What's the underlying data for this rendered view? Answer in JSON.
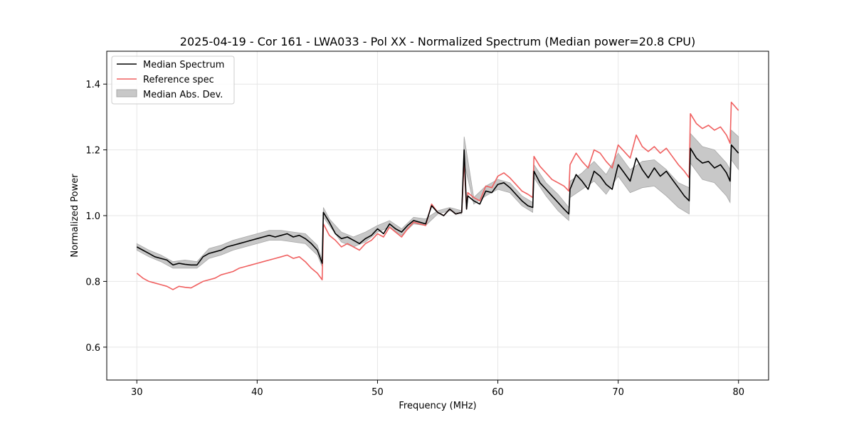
{
  "chart_data": {
    "type": "line",
    "title": "2025-04-19 - Cor 161 - LWA033 - Pol XX - Normalized Spectrum (Median power=20.8 CPU)",
    "xlabel": "Frequency (MHz)",
    "ylabel": "Normalized Power",
    "xlim": [
      27.5,
      82.5
    ],
    "ylim": [
      0.5,
      1.5
    ],
    "xticks": [
      30,
      40,
      50,
      60,
      70,
      80
    ],
    "yticks": [
      0.6,
      0.8,
      1.0,
      1.2,
      1.4
    ],
    "grid": true,
    "legend_position": "top-left",
    "series": [
      {
        "name": "Median Spectrum",
        "color": "#000000",
        "x": [
          30.0,
          30.5,
          31.0,
          31.5,
          32.0,
          32.5,
          33.0,
          33.5,
          34.0,
          34.5,
          35.0,
          35.5,
          36.0,
          36.5,
          37.0,
          37.5,
          38.0,
          38.5,
          39.0,
          39.5,
          40.0,
          40.5,
          41.0,
          41.5,
          42.0,
          42.5,
          43.0,
          43.5,
          44.0,
          44.5,
          45.0,
          45.4,
          45.5,
          46.0,
          46.5,
          47.0,
          47.5,
          48.0,
          48.5,
          49.0,
          49.5,
          50.0,
          50.5,
          51.0,
          51.5,
          52.0,
          52.5,
          53.0,
          53.5,
          54.0,
          54.5,
          55.0,
          55.5,
          56.0,
          56.5,
          57.0,
          57.2,
          57.4,
          57.5,
          58.0,
          58.5,
          59.0,
          59.5,
          60.0,
          60.5,
          61.0,
          61.5,
          62.0,
          62.5,
          62.9,
          63.0,
          63.5,
          64.0,
          64.5,
          65.0,
          65.5,
          65.9,
          66.0,
          66.5,
          67.0,
          67.5,
          68.0,
          68.5,
          69.0,
          69.5,
          70.0,
          70.5,
          71.0,
          71.5,
          72.0,
          72.5,
          73.0,
          73.5,
          74.0,
          74.5,
          75.0,
          75.5,
          75.9,
          76.0,
          76.5,
          77.0,
          77.5,
          78.0,
          78.5,
          79.0,
          79.3,
          79.4,
          80.0
        ],
        "y": [
          0.905,
          0.895,
          0.885,
          0.875,
          0.87,
          0.865,
          0.85,
          0.855,
          0.852,
          0.85,
          0.85,
          0.875,
          0.885,
          0.89,
          0.895,
          0.905,
          0.91,
          0.915,
          0.92,
          0.925,
          0.93,
          0.935,
          0.94,
          0.935,
          0.94,
          0.945,
          0.935,
          0.94,
          0.93,
          0.915,
          0.895,
          0.855,
          1.01,
          0.98,
          0.945,
          0.93,
          0.935,
          0.925,
          0.915,
          0.93,
          0.94,
          0.96,
          0.945,
          0.975,
          0.96,
          0.95,
          0.97,
          0.985,
          0.98,
          0.975,
          1.03,
          1.01,
          1.0,
          1.02,
          1.005,
          1.01,
          1.2,
          1.02,
          1.06,
          1.045,
          1.035,
          1.075,
          1.07,
          1.095,
          1.1,
          1.085,
          1.065,
          1.045,
          1.03,
          1.025,
          1.135,
          1.1,
          1.08,
          1.06,
          1.04,
          1.02,
          1.005,
          1.08,
          1.125,
          1.105,
          1.08,
          1.135,
          1.12,
          1.095,
          1.08,
          1.155,
          1.13,
          1.105,
          1.175,
          1.14,
          1.115,
          1.145,
          1.12,
          1.135,
          1.11,
          1.085,
          1.06,
          1.045,
          1.205,
          1.175,
          1.16,
          1.165,
          1.145,
          1.155,
          1.13,
          1.105,
          1.215,
          1.19
        ]
      },
      {
        "name": "Reference spec",
        "color": "#f06060",
        "x": [
          30.0,
          30.5,
          31.0,
          31.5,
          32.0,
          32.5,
          33.0,
          33.5,
          34.0,
          34.5,
          35.0,
          35.5,
          36.0,
          36.5,
          37.0,
          37.5,
          38.0,
          38.5,
          39.0,
          39.5,
          40.0,
          40.5,
          41.0,
          41.5,
          42.0,
          42.5,
          43.0,
          43.5,
          44.0,
          44.5,
          45.0,
          45.4,
          45.5,
          46.0,
          46.5,
          47.0,
          47.5,
          48.0,
          48.5,
          49.0,
          49.5,
          50.0,
          50.5,
          51.0,
          51.5,
          52.0,
          52.5,
          53.0,
          53.5,
          54.0,
          54.5,
          55.0,
          55.5,
          56.0,
          56.5,
          57.0,
          57.2,
          57.4,
          57.5,
          58.0,
          58.5,
          59.0,
          59.5,
          60.0,
          60.5,
          61.0,
          61.5,
          62.0,
          62.5,
          62.9,
          63.0,
          63.5,
          64.0,
          64.5,
          65.0,
          65.5,
          65.9,
          66.0,
          66.5,
          67.0,
          67.5,
          68.0,
          68.5,
          69.0,
          69.5,
          70.0,
          70.5,
          71.0,
          71.5,
          72.0,
          72.5,
          73.0,
          73.5,
          74.0,
          74.5,
          75.0,
          75.5,
          75.9,
          76.0,
          76.5,
          77.0,
          77.5,
          78.0,
          78.5,
          79.0,
          79.3,
          79.4,
          80.0
        ],
        "y": [
          0.825,
          0.81,
          0.8,
          0.795,
          0.79,
          0.785,
          0.775,
          0.785,
          0.782,
          0.78,
          0.79,
          0.8,
          0.805,
          0.81,
          0.82,
          0.825,
          0.83,
          0.84,
          0.845,
          0.85,
          0.855,
          0.86,
          0.865,
          0.87,
          0.875,
          0.88,
          0.87,
          0.875,
          0.86,
          0.84,
          0.825,
          0.805,
          0.975,
          0.94,
          0.925,
          0.905,
          0.915,
          0.905,
          0.895,
          0.915,
          0.925,
          0.945,
          0.935,
          0.965,
          0.95,
          0.935,
          0.96,
          0.98,
          0.975,
          0.97,
          1.035,
          1.01,
          1.0,
          1.02,
          1.005,
          1.01,
          1.17,
          1.02,
          1.07,
          1.055,
          1.045,
          1.09,
          1.085,
          1.12,
          1.13,
          1.115,
          1.095,
          1.075,
          1.065,
          1.055,
          1.18,
          1.15,
          1.13,
          1.11,
          1.1,
          1.09,
          1.075,
          1.155,
          1.19,
          1.165,
          1.145,
          1.2,
          1.19,
          1.165,
          1.145,
          1.215,
          1.195,
          1.175,
          1.245,
          1.21,
          1.195,
          1.21,
          1.19,
          1.205,
          1.18,
          1.155,
          1.135,
          1.115,
          1.31,
          1.28,
          1.265,
          1.275,
          1.26,
          1.27,
          1.245,
          1.22,
          1.345,
          1.32
        ]
      },
      {
        "name": "Median Abs. Dev.",
        "type": "band",
        "color": "#c8c8c8",
        "x": [
          30.0,
          31.0,
          32.0,
          33.0,
          34.0,
          35.0,
          36.0,
          37.0,
          38.0,
          39.0,
          40.0,
          41.0,
          42.0,
          43.0,
          44.0,
          45.0,
          45.4,
          45.5,
          46.0,
          47.0,
          48.0,
          49.0,
          50.0,
          51.0,
          52.0,
          53.0,
          54.0,
          55.0,
          56.0,
          57.0,
          57.2,
          58.0,
          59.0,
          60.0,
          61.0,
          62.0,
          62.9,
          63.0,
          64.0,
          65.0,
          65.9,
          66.0,
          67.0,
          68.0,
          69.0,
          70.0,
          71.0,
          72.0,
          73.0,
          74.0,
          75.0,
          75.9,
          76.0,
          77.0,
          78.0,
          79.0,
          79.3,
          79.4,
          80.0
        ],
        "lower": [
          0.895,
          0.875,
          0.86,
          0.84,
          0.84,
          0.84,
          0.87,
          0.88,
          0.895,
          0.905,
          0.915,
          0.925,
          0.925,
          0.92,
          0.915,
          0.88,
          0.845,
          0.995,
          0.97,
          0.92,
          0.905,
          0.92,
          0.95,
          0.965,
          0.94,
          0.975,
          0.97,
          1.005,
          1.015,
          1.005,
          1.16,
          1.035,
          1.06,
          1.08,
          1.07,
          1.03,
          1.01,
          1.115,
          1.06,
          1.015,
          0.985,
          1.055,
          1.08,
          1.105,
          1.065,
          1.12,
          1.07,
          1.085,
          1.09,
          1.06,
          1.025,
          1.005,
          1.16,
          1.11,
          1.1,
          1.06,
          1.04,
          1.17,
          1.14
        ],
        "upper": [
          0.915,
          0.895,
          0.88,
          0.86,
          0.865,
          0.86,
          0.9,
          0.91,
          0.925,
          0.935,
          0.945,
          0.955,
          0.955,
          0.95,
          0.945,
          0.91,
          0.865,
          1.025,
          0.99,
          0.95,
          0.935,
          0.95,
          0.97,
          0.985,
          0.96,
          0.995,
          0.99,
          1.015,
          1.025,
          1.015,
          1.24,
          1.055,
          1.09,
          1.11,
          1.1,
          1.06,
          1.04,
          1.155,
          1.1,
          1.065,
          1.025,
          1.105,
          1.13,
          1.165,
          1.125,
          1.19,
          1.14,
          1.165,
          1.17,
          1.14,
          1.1,
          1.085,
          1.25,
          1.21,
          1.2,
          1.16,
          1.14,
          1.26,
          1.24
        ]
      }
    ]
  }
}
